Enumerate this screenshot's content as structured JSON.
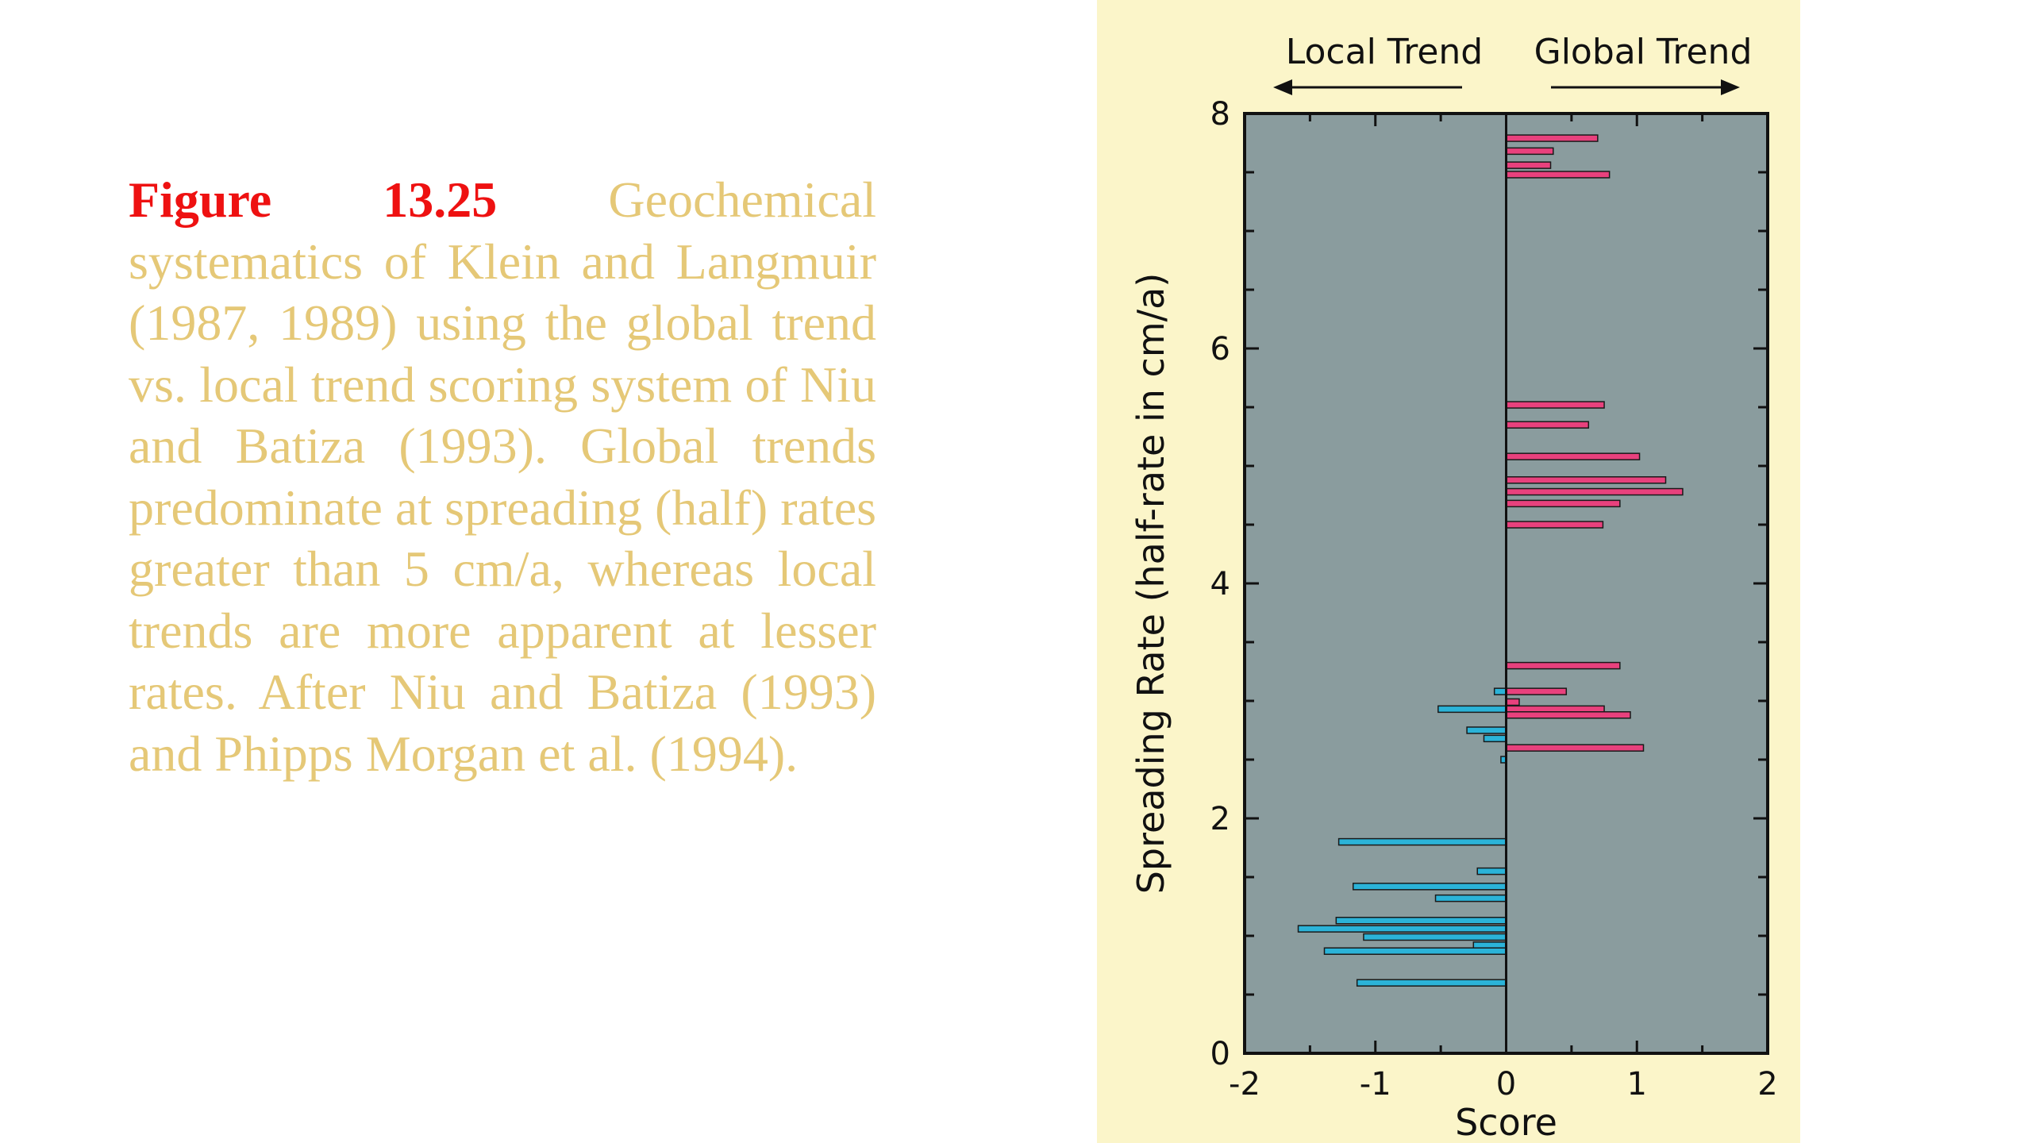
{
  "caption": {
    "label": "Figure 13.25",
    "text": "Geochemical systematics of Klein and Langmuir (1987, 1989) using the global trend vs. local trend scoring system of Niu and Batiza (1993). Global trends predominate at spreading (half) rates greater than 5 cm/a, whereas local trends are more apparent at lesser rates. After Niu and Batiza (1993) and Phipps Morgan et al. (1994)."
  },
  "colors": {
    "caption_text": "#e5c877",
    "caption_label": "#ee1111",
    "panel_background": "#fbf5c9",
    "plot_background": "#8a9c9e",
    "global_bar": "#e8417d",
    "local_bar": "#2bb3d8"
  },
  "chart_data": {
    "type": "bar",
    "orientation": "horizontal",
    "xlabel": "Score",
    "ylabel": "Spreading Rate (half-rate in cm/a)",
    "xlim": [
      -2,
      2
    ],
    "ylim": [
      0,
      8
    ],
    "xticks": [
      "-2",
      "-1",
      "0",
      "1",
      "2"
    ],
    "yticks": [
      "0",
      "2",
      "4",
      "6",
      "8"
    ],
    "direction_labels": {
      "left": "Local Trend",
      "right": "Global Trend"
    },
    "series": [
      {
        "name": "Global Trend",
        "color": "#e8417d",
        "bars": [
          {
            "y": 7.79,
            "value": 0.7
          },
          {
            "y": 7.68,
            "value": 0.36
          },
          {
            "y": 7.56,
            "value": 0.34
          },
          {
            "y": 7.48,
            "value": 0.79
          },
          {
            "y": 5.52,
            "value": 0.75
          },
          {
            "y": 5.35,
            "value": 0.63
          },
          {
            "y": 5.08,
            "value": 1.02
          },
          {
            "y": 4.88,
            "value": 1.22
          },
          {
            "y": 4.78,
            "value": 1.35
          },
          {
            "y": 4.68,
            "value": 0.87
          },
          {
            "y": 4.5,
            "value": 0.74
          },
          {
            "y": 3.3,
            "value": 0.87
          },
          {
            "y": 3.08,
            "value": 0.46
          },
          {
            "y": 2.99,
            "value": 0.1
          },
          {
            "y": 2.93,
            "value": 0.75
          },
          {
            "y": 2.88,
            "value": 0.95
          },
          {
            "y": 2.6,
            "value": 1.05
          }
        ]
      },
      {
        "name": "Local Trend",
        "color": "#2bb3d8",
        "bars": [
          {
            "y": 3.08,
            "value": -0.09
          },
          {
            "y": 2.93,
            "value": -0.52
          },
          {
            "y": 2.75,
            "value": -0.3
          },
          {
            "y": 2.68,
            "value": -0.17
          },
          {
            "y": 2.5,
            "value": -0.04
          },
          {
            "y": 1.8,
            "value": -1.28
          },
          {
            "y": 1.55,
            "value": -0.22
          },
          {
            "y": 1.42,
            "value": -1.17
          },
          {
            "y": 1.32,
            "value": -0.54
          },
          {
            "y": 1.13,
            "value": -1.3
          },
          {
            "y": 1.06,
            "value": -1.59
          },
          {
            "y": 0.99,
            "value": -1.09
          },
          {
            "y": 0.92,
            "value": -0.25
          },
          {
            "y": 0.87,
            "value": -1.39
          },
          {
            "y": 0.6,
            "value": -1.14
          }
        ]
      }
    ]
  }
}
